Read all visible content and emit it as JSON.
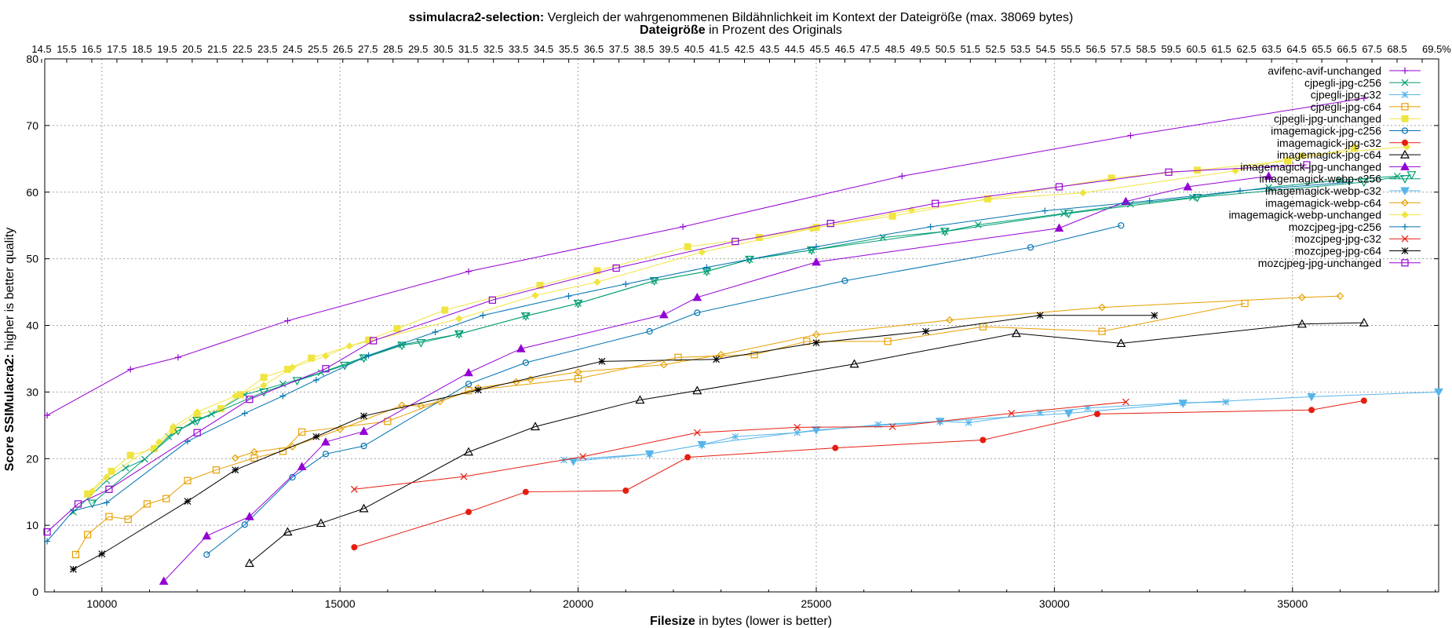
{
  "title": {
    "bold": "ssimulacra2-selection:",
    "rest": " Vergleich der wahrgenommenen Bildähnlichkeit im Kontext der Dateigröße (max. 38069 bytes)"
  },
  "x2axis": {
    "bold": "Dateigröße",
    "rest": " in Prozent des Originals"
  },
  "xaxis": {
    "bold": "Filesize",
    "rest": " in bytes (lower is better)"
  },
  "yaxis": {
    "bold": "Score SSIMulacra2:",
    "rest": " higher is better quality"
  },
  "chart_data": {
    "type": "line",
    "xlim": [
      8800,
      38069
    ],
    "ylim": [
      0,
      80
    ],
    "x_ticks": [
      10000,
      15000,
      20000,
      25000,
      30000,
      35000
    ],
    "y_ticks": [
      0,
      10,
      20,
      30,
      40,
      50,
      60,
      70,
      80
    ],
    "grid": true,
    "legend_position": "top-right",
    "top_axis_labels": "14.5%…69.5% (overlapping, 1% steps)",
    "top_axis": {
      "start_pct": 14.5,
      "end_pct": 69.5,
      "step_pct": 1
    },
    "series": [
      {
        "name": "avifenc-avif-unchanged",
        "color": "#9400d3",
        "marker": "plus",
        "points": [
          [
            8850,
            26.5
          ],
          [
            10600,
            33.4
          ],
          [
            11600,
            35.2
          ],
          [
            13900,
            40.7
          ],
          [
            17700,
            48.1
          ],
          [
            22200,
            54.8
          ],
          [
            26800,
            62.4
          ],
          [
            31600,
            68.5
          ],
          [
            36500,
            74.1
          ]
        ]
      },
      {
        "name": "cjpegli-jpg-c256",
        "color": "#009e73",
        "marker": "x",
        "points": [
          [
            9400,
            12
          ],
          [
            10100,
            16.7
          ],
          [
            10500,
            18.6
          ],
          [
            10900,
            19.9
          ],
          [
            11400,
            23.3
          ],
          [
            11900,
            25.5
          ],
          [
            12300,
            26.7
          ],
          [
            13000,
            29.6
          ],
          [
            13800,
            31.2
          ],
          [
            14600,
            32.9
          ],
          [
            15500,
            35.2
          ],
          [
            16300,
            37.1
          ],
          [
            17500,
            38.7
          ],
          [
            18900,
            41.4
          ],
          [
            20000,
            43.3
          ],
          [
            21600,
            46.7
          ],
          [
            22700,
            48.1
          ],
          [
            23600,
            49.9
          ],
          [
            24900,
            51.3
          ],
          [
            26400,
            53.2
          ],
          [
            27700,
            54.1
          ],
          [
            28400,
            55.1
          ],
          [
            30200,
            56.8
          ],
          [
            31600,
            58.2
          ],
          [
            32900,
            59.2
          ],
          [
            34500,
            60.7
          ],
          [
            36000,
            61.8
          ],
          [
            37200,
            62.4
          ]
        ]
      },
      {
        "name": "cjpegli-jpg-c32",
        "color": "#56b4e9",
        "marker": "star",
        "points": [
          [
            19700,
            19.8
          ],
          [
            21500,
            20.7
          ],
          [
            22600,
            22.1
          ],
          [
            23300,
            23.3
          ],
          [
            24600,
            23.9
          ],
          [
            26300,
            25.1
          ],
          [
            27600,
            25.6
          ],
          [
            28200,
            25.4
          ],
          [
            29700,
            26.9
          ],
          [
            30700,
            27.6
          ],
          [
            32700,
            28.4
          ],
          [
            33600,
            28.5
          ]
        ]
      },
      {
        "name": "cjpegli-jpg-c64",
        "color": "#e69f00",
        "marker": "square",
        "points": [
          [
            9450,
            5.6
          ],
          [
            9700,
            8.6
          ],
          [
            10150,
            11.3
          ],
          [
            10550,
            10.9
          ],
          [
            10950,
            13.2
          ],
          [
            11350,
            14
          ],
          [
            11800,
            16.7
          ],
          [
            12400,
            18.3
          ],
          [
            13200,
            20.1
          ],
          [
            13800,
            21.1
          ],
          [
            14200,
            24
          ],
          [
            16000,
            25.6
          ],
          [
            17700,
            30.2
          ],
          [
            20000,
            32
          ],
          [
            22100,
            35.2
          ],
          [
            23700,
            35.6
          ],
          [
            24800,
            37.6
          ],
          [
            26500,
            37.6
          ],
          [
            28500,
            39.8
          ],
          [
            31000,
            39.1
          ],
          [
            34000,
            43.3
          ]
        ]
      },
      {
        "name": "cjpegli-jpg-unchanged",
        "color": "#f0e442",
        "marker": "filled-square",
        "points": [
          [
            9700,
            14.7
          ],
          [
            10200,
            18.1
          ],
          [
            10600,
            20.5
          ],
          [
            11100,
            21.5
          ],
          [
            11500,
            24.3
          ],
          [
            12000,
            26.6
          ],
          [
            12500,
            27.5
          ],
          [
            12900,
            29.6
          ],
          [
            13400,
            32.2
          ],
          [
            13900,
            33.4
          ],
          [
            14400,
            35.1
          ],
          [
            15600,
            37.8
          ],
          [
            16200,
            39.5
          ],
          [
            17200,
            42.3
          ],
          [
            19200,
            46
          ],
          [
            20400,
            48.2
          ],
          [
            22300,
            51.8
          ],
          [
            23800,
            53.2
          ],
          [
            25000,
            54.7
          ],
          [
            26600,
            56.4
          ],
          [
            28600,
            59
          ],
          [
            31200,
            62.1
          ],
          [
            33000,
            63.3
          ],
          [
            34900,
            64.7
          ],
          [
            36300,
            66.6
          ]
        ]
      },
      {
        "name": "imagemagick-jpg-c256",
        "color": "#0072b2",
        "marker": "circle",
        "points": [
          [
            12200,
            5.6
          ],
          [
            13000,
            10.1
          ],
          [
            14000,
            17.2
          ],
          [
            14700,
            20.7
          ],
          [
            15500,
            21.9
          ],
          [
            17700,
            31.2
          ],
          [
            18900,
            34.4
          ],
          [
            21500,
            39.1
          ],
          [
            22500,
            41.9
          ],
          [
            25600,
            46.7
          ],
          [
            29500,
            51.7
          ],
          [
            31400,
            55
          ]
        ]
      },
      {
        "name": "imagemagick-jpg-c32",
        "color": "#e51e10",
        "marker": "filled-circle",
        "points": [
          [
            15300,
            6.7
          ],
          [
            17700,
            12
          ],
          [
            18900,
            15
          ],
          [
            21000,
            15.2
          ],
          [
            22300,
            20.2
          ],
          [
            25400,
            21.6
          ],
          [
            28500,
            22.8
          ],
          [
            30900,
            26.7
          ],
          [
            35400,
            27.3
          ],
          [
            36500,
            28.7
          ]
        ]
      },
      {
        "name": "imagemagick-jpg-c64",
        "color": "#000000",
        "marker": "triangle",
        "points": [
          [
            13100,
            4.3
          ],
          [
            13900,
            9
          ],
          [
            14600,
            10.3
          ],
          [
            15500,
            12.5
          ],
          [
            17700,
            21
          ],
          [
            19100,
            24.8
          ],
          [
            21300,
            28.8
          ],
          [
            22500,
            30.2
          ],
          [
            25800,
            34.2
          ],
          [
            29200,
            38.8
          ],
          [
            31400,
            37.3
          ],
          [
            35200,
            40.2
          ],
          [
            36500,
            40.4
          ]
        ]
      },
      {
        "name": "imagemagick-jpg-unchanged",
        "color": "#9400d3",
        "marker": "filled-triangle",
        "points": [
          [
            11300,
            1.6
          ],
          [
            12200,
            8.4
          ],
          [
            13100,
            11.3
          ],
          [
            14200,
            18.8
          ],
          [
            14700,
            22.5
          ],
          [
            15500,
            24.1
          ],
          [
            17700,
            32.9
          ],
          [
            18800,
            36.5
          ],
          [
            21800,
            41.6
          ],
          [
            22500,
            44.2
          ],
          [
            25000,
            49.5
          ],
          [
            30100,
            54.6
          ],
          [
            31500,
            58.6
          ],
          [
            32800,
            60.8
          ],
          [
            34500,
            62.4
          ]
        ]
      },
      {
        "name": "imagemagick-webp-c256",
        "color": "#009e73",
        "marker": "inverted-triangle",
        "points": [
          [
            9800,
            13.3
          ],
          [
            11600,
            24.2
          ],
          [
            12000,
            25.7
          ],
          [
            13400,
            30
          ],
          [
            14100,
            31.7
          ],
          [
            15100,
            34
          ],
          [
            15500,
            35.1
          ],
          [
            16300,
            37
          ],
          [
            16700,
            37.4
          ],
          [
            17500,
            38.7
          ],
          [
            18900,
            41.4
          ],
          [
            20000,
            43.3
          ],
          [
            21600,
            46.7
          ],
          [
            22700,
            48.1
          ],
          [
            23600,
            49.9
          ],
          [
            24900,
            51.3
          ],
          [
            27700,
            54.1
          ],
          [
            30300,
            56.8
          ],
          [
            33000,
            59.2
          ],
          [
            36500,
            61.5
          ],
          [
            37500,
            62.6
          ]
        ]
      },
      {
        "name": "imagemagick-webp-c32",
        "color": "#56b4e9",
        "marker": "filled-inverted-triangle",
        "points": [
          [
            19900,
            19.6
          ],
          [
            21500,
            20.7
          ],
          [
            22600,
            22.1
          ],
          [
            25000,
            24.3
          ],
          [
            27600,
            25.6
          ],
          [
            30300,
            26.8
          ],
          [
            32700,
            28.3
          ],
          [
            35400,
            29.3
          ],
          [
            38069,
            30
          ]
        ]
      },
      {
        "name": "imagemagick-webp-c64",
        "color": "#e69f00",
        "marker": "diamond",
        "points": [
          [
            12800,
            20.1
          ],
          [
            13200,
            21
          ],
          [
            14000,
            21.8
          ],
          [
            15000,
            24.4
          ],
          [
            16300,
            28
          ],
          [
            16700,
            27.9
          ],
          [
            17100,
            28.6
          ],
          [
            17900,
            30.6
          ],
          [
            18700,
            31.5
          ],
          [
            19000,
            31.9
          ],
          [
            20000,
            33
          ],
          [
            21800,
            34.1
          ],
          [
            23000,
            35.6
          ],
          [
            25000,
            38.6
          ],
          [
            27800,
            40.8
          ],
          [
            31000,
            42.7
          ],
          [
            35200,
            44.2
          ],
          [
            36000,
            44.4
          ]
        ]
      },
      {
        "name": "imagemagick-webp-unchanged",
        "color": "#f0e442",
        "marker": "filled-diamond",
        "points": [
          [
            9800,
            15.1
          ],
          [
            10100,
            17.2
          ],
          [
            11200,
            22.5
          ],
          [
            11500,
            24.8
          ],
          [
            12000,
            27
          ],
          [
            12800,
            29.4
          ],
          [
            13400,
            31
          ],
          [
            14000,
            33.7
          ],
          [
            14700,
            35.4
          ],
          [
            15200,
            36.9
          ],
          [
            17500,
            41
          ],
          [
            19100,
            44.5
          ],
          [
            20400,
            46.5
          ],
          [
            22600,
            51
          ],
          [
            24900,
            54.5
          ],
          [
            27000,
            57.3
          ],
          [
            28600,
            58.9
          ],
          [
            30600,
            59.9
          ],
          [
            33800,
            63.2
          ],
          [
            35200,
            65.5
          ],
          [
            37400,
            66.8
          ]
        ]
      },
      {
        "name": "mozcjpeg-jpg-c256",
        "color": "#0072b2",
        "marker": "plus",
        "points": [
          [
            8850,
            7.6
          ],
          [
            9400,
            12.2
          ],
          [
            10100,
            13.4
          ],
          [
            11800,
            22.6
          ],
          [
            13000,
            26.8
          ],
          [
            13800,
            29.4
          ],
          [
            14500,
            31.8
          ],
          [
            15600,
            35.5
          ],
          [
            17000,
            39
          ],
          [
            18000,
            41.5
          ],
          [
            19800,
            44.4
          ],
          [
            21000,
            46.2
          ],
          [
            22700,
            48.7
          ],
          [
            25000,
            51.8
          ],
          [
            27400,
            54.8
          ],
          [
            29800,
            57.2
          ],
          [
            32000,
            58.7
          ],
          [
            33900,
            60.2
          ],
          [
            36200,
            61.5
          ]
        ]
      },
      {
        "name": "mozcjpeg-jpg-c32",
        "color": "#e51e10",
        "marker": "x",
        "points": [
          [
            15300,
            15.4
          ],
          [
            17600,
            17.3
          ],
          [
            20100,
            20.3
          ],
          [
            22500,
            23.9
          ],
          [
            24600,
            24.7
          ],
          [
            26600,
            24.8
          ],
          [
            29100,
            26.8
          ],
          [
            31500,
            28.5
          ]
        ]
      },
      {
        "name": "mozcjpeg-jpg-c64",
        "color": "#000000",
        "marker": "star",
        "points": [
          [
            9400,
            3.4
          ],
          [
            10000,
            5.7
          ],
          [
            11800,
            13.6
          ],
          [
            12800,
            18.3
          ],
          [
            14500,
            23.3
          ],
          [
            15500,
            26.4
          ],
          [
            17900,
            30.3
          ],
          [
            20500,
            34.6
          ],
          [
            22900,
            34.9
          ],
          [
            25000,
            37.4
          ],
          [
            27300,
            39.1
          ],
          [
            29700,
            41.5
          ],
          [
            32100,
            41.5
          ]
        ]
      },
      {
        "name": "mozcjpeg-jpg-unchanged",
        "color": "#9400d3",
        "marker": "open-square",
        "points": [
          [
            8850,
            9
          ],
          [
            9500,
            13.2
          ],
          [
            10150,
            15.4
          ],
          [
            12000,
            23.9
          ],
          [
            13100,
            28.9
          ],
          [
            14700,
            33.5
          ],
          [
            15700,
            37.7
          ],
          [
            18200,
            43.8
          ],
          [
            20800,
            48.6
          ],
          [
            23300,
            52.6
          ],
          [
            25300,
            55.3
          ],
          [
            27500,
            58.3
          ],
          [
            30100,
            60.8
          ],
          [
            32400,
            63
          ],
          [
            35300,
            64.1
          ]
        ]
      }
    ]
  }
}
